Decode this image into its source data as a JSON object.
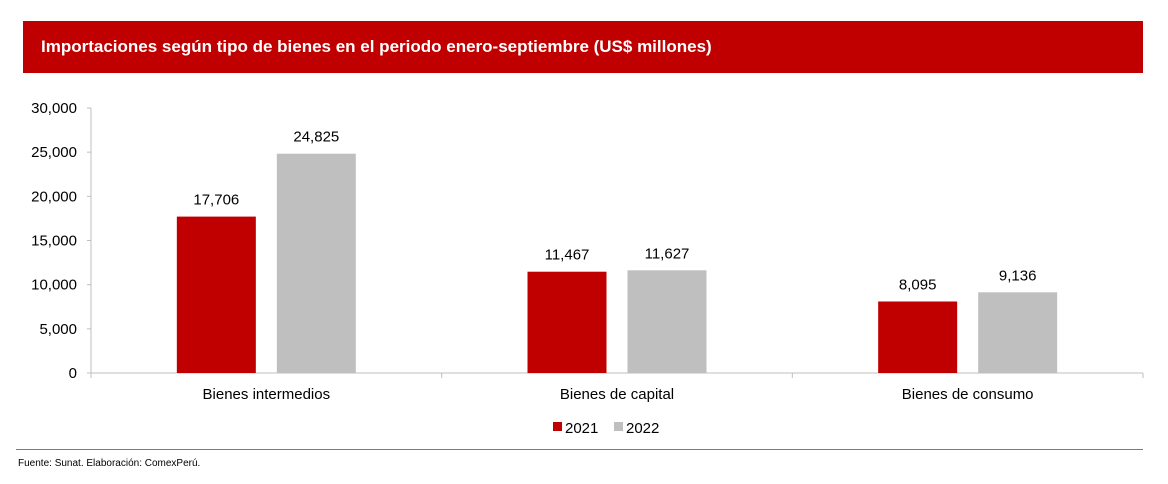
{
  "title": "Importaciones según tipo de bienes en el periodo enero-septiembre (US$ millones)",
  "source": "Fuente: Sunat. Elaboración: ComexPerú.",
  "chart_data": {
    "type": "bar",
    "title": "Importaciones según tipo de bienes en el periodo enero-septiembre (US$ millones)",
    "categories": [
      "Bienes intermedios",
      "Bienes de capital",
      "Bienes de consumo"
    ],
    "series": [
      {
        "name": "2021",
        "color": "#c00000",
        "values": [
          17706,
          11467,
          8095
        ],
        "labels": [
          "17,706",
          "11,467",
          "8,095"
        ]
      },
      {
        "name": "2022",
        "color": "#bfbfbf",
        "values": [
          24825,
          11627,
          9136
        ],
        "labels": [
          "24,825",
          "11,627",
          "9,136"
        ]
      }
    ],
    "ylim": [
      0,
      30000
    ],
    "yticks": [
      0,
      5000,
      10000,
      15000,
      20000,
      25000,
      30000
    ],
    "ytick_labels": [
      "0",
      "5,000",
      "10,000",
      "15,000",
      "20,000",
      "25,000",
      "30,000"
    ],
    "xlabel": "",
    "ylabel": "",
    "grid": false,
    "legend": "bottom-center"
  }
}
